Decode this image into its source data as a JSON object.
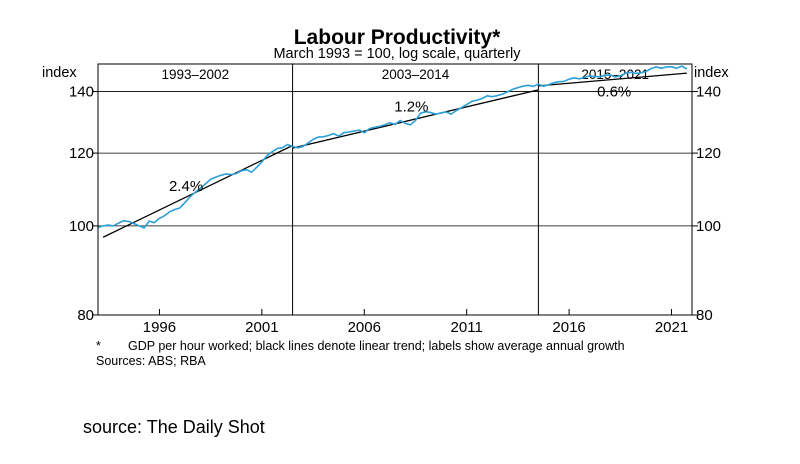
{
  "chart_data": {
    "type": "line",
    "title": "Labour Productivity*",
    "subtitle": "March 1993 = 100, log scale, quarterly",
    "ylabel_left": "index",
    "ylabel_right": "index",
    "yscale": "log",
    "ylim": [
      80,
      150
    ],
    "yticks": [
      80,
      100,
      120,
      140
    ],
    "xlim": [
      1993,
      2022
    ],
    "xticks": [
      1996,
      2001,
      2006,
      2011,
      2016,
      2021
    ],
    "grid": "horizontal at y ticks",
    "periods": [
      {
        "label": "1993–2002",
        "start": 1993.0,
        "end": 2002.5,
        "growth_label": "2.4%",
        "trend_start": [
          1993.25,
          97.2
        ],
        "trend_end": [
          2002.5,
          122.3
        ]
      },
      {
        "label": "2003–2014",
        "start": 2002.5,
        "end": 2014.5,
        "growth_label": "1.2%",
        "trend_start": [
          2002.5,
          121.5
        ],
        "trend_end": [
          2014.5,
          140.6
        ]
      },
      {
        "label": "2015–2021",
        "start": 2014.5,
        "end": 2022.0,
        "growth_label": "0.6%",
        "trend_start": [
          2014.5,
          142.0
        ],
        "trend_end": [
          2021.75,
          146.6
        ]
      }
    ],
    "series": [
      {
        "name": "",
        "color": "#2a9fd8",
        "x": [
          1993.0,
          1993.25,
          1993.5,
          1993.75,
          1994.0,
          1994.25,
          1994.5,
          1994.75,
          1995.0,
          1995.25,
          1995.5,
          1995.75,
          1996.0,
          1996.25,
          1996.5,
          1996.75,
          1997.0,
          1997.25,
          1997.5,
          1997.75,
          1998.0,
          1998.25,
          1998.5,
          1998.75,
          1999.0,
          1999.25,
          1999.5,
          1999.75,
          2000.0,
          2000.25,
          2000.5,
          2000.75,
          2001.0,
          2001.25,
          2001.5,
          2001.75,
          2002.0,
          2002.25,
          2002.5,
          2002.75,
          2003.0,
          2003.25,
          2003.5,
          2003.75,
          2004.0,
          2004.25,
          2004.5,
          2004.75,
          2005.0,
          2005.25,
          2005.5,
          2005.75,
          2006.0,
          2006.25,
          2006.5,
          2006.75,
          2007.0,
          2007.25,
          2007.5,
          2007.75,
          2008.0,
          2008.25,
          2008.5,
          2008.75,
          2009.0,
          2009.25,
          2009.5,
          2009.75,
          2010.0,
          2010.25,
          2010.5,
          2010.75,
          2011.0,
          2011.25,
          2011.5,
          2011.75,
          2012.0,
          2012.25,
          2012.5,
          2012.75,
          2013.0,
          2013.25,
          2013.5,
          2013.75,
          2014.0,
          2014.25,
          2014.5,
          2014.75,
          2015.0,
          2015.25,
          2015.5,
          2015.75,
          2016.0,
          2016.25,
          2016.5,
          2016.75,
          2017.0,
          2017.25,
          2017.5,
          2017.75,
          2018.0,
          2018.25,
          2018.5,
          2018.75,
          2019.0,
          2019.25,
          2019.5,
          2019.75,
          2020.0,
          2020.25,
          2020.5,
          2020.75,
          2021.0,
          2021.25,
          2021.5,
          2021.75
        ],
        "values": [
          99.6,
          100.0,
          100.2,
          100.0,
          100.7,
          101.3,
          101.1,
          100.6,
          100.0,
          99.5,
          101.2,
          100.8,
          101.9,
          102.6,
          103.6,
          104.2,
          104.6,
          106.1,
          107.6,
          108.8,
          109.9,
          111.1,
          112.4,
          113.0,
          113.5,
          113.9,
          113.7,
          114.0,
          114.8,
          115.1,
          114.4,
          115.8,
          117.4,
          119.2,
          120.4,
          121.4,
          121.6,
          122.6,
          122.0,
          121.6,
          122.0,
          123.0,
          124.2,
          124.9,
          125.0,
          125.4,
          126.0,
          125.2,
          126.3,
          126.5,
          126.8,
          127.1,
          126.3,
          127.6,
          128.0,
          128.3,
          128.8,
          129.5,
          128.9,
          130.2,
          129.3,
          128.8,
          130.2,
          132.6,
          133.1,
          132.8,
          132.3,
          132.7,
          133.0,
          132.3,
          133.5,
          134.5,
          135.5,
          136.6,
          137.0,
          137.6,
          138.5,
          138.2,
          138.6,
          139.1,
          139.9,
          140.8,
          141.4,
          141.9,
          142.2,
          141.8,
          142.6,
          141.9,
          142.4,
          143.1,
          143.5,
          143.6,
          144.4,
          144.9,
          144.5,
          145.0,
          145.6,
          145.3,
          145.3,
          145.8,
          146.0,
          145.2,
          145.6,
          146.5,
          146.9,
          146.5,
          146.7,
          147.2,
          148.3,
          148.9,
          148.4,
          148.9,
          149.0,
          148.4,
          149.2,
          148.1
        ]
      }
    ]
  },
  "footnote_marker": "*",
  "footnote": "GDP per hour worked; black lines denote linear trend; labels show average annual growth",
  "sources": "Sources: ABS; RBA",
  "credit": "source: The Daily Shot"
}
